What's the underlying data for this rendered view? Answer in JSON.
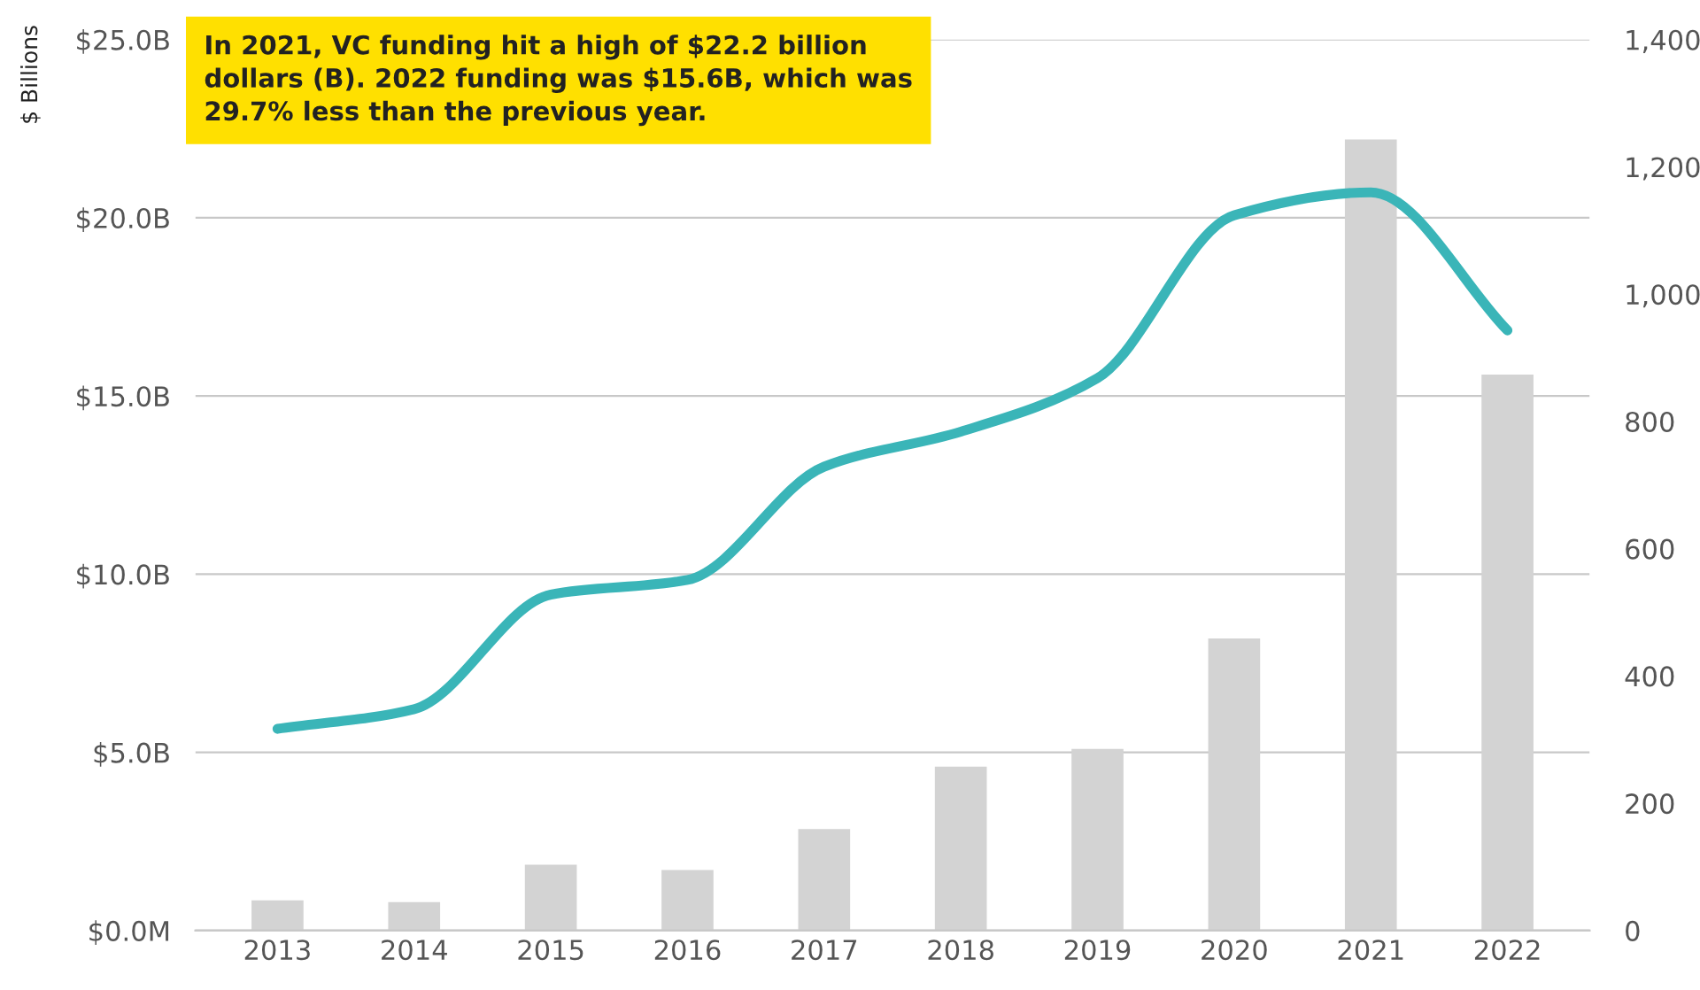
{
  "chart_data": {
    "type": "bar",
    "ylabel": "$ Billions",
    "annotations": [
      "In 2021, VC funding hit a high of $22.2 billion dollars (B). 2022 funding was $15.6B, which was 29.7% less than the previous year."
    ],
    "categories": [
      "2013",
      "2014",
      "2015",
      "2016",
      "2017",
      "2018",
      "2019",
      "2020",
      "2021",
      "2022"
    ],
    "series": [
      {
        "color": "#d3d3d3",
        "values": [
          0.85,
          0.8,
          1.85,
          1.7,
          2.85,
          4.6,
          5.1,
          8.2,
          22.2,
          15.6
        ]
      },
      {
        "type": "line",
        "axis": "y2",
        "color": "#3ab5b8",
        "values": [
          317,
          348,
          528,
          551,
          729,
          784,
          868,
          1124,
          1160,
          943
        ]
      }
    ],
    "ylim": [
      0,
      25
    ],
    "yticks": [
      {
        "value": 0,
        "label": "$0.0M"
      },
      {
        "value": 5,
        "label": "$5.0B"
      },
      {
        "value": 10,
        "label": "$10.0B"
      },
      {
        "value": 15,
        "label": "$15.0B"
      },
      {
        "value": 20,
        "label": "$20.0B"
      },
      {
        "value": 25,
        "label": "$25.0B"
      }
    ],
    "y2lim": [
      0,
      1400
    ],
    "y2ticks": [
      {
        "value": 0,
        "label": "0"
      },
      {
        "value": 200,
        "label": "200"
      },
      {
        "value": 400,
        "label": "400"
      },
      {
        "value": 600,
        "label": "600"
      },
      {
        "value": 800,
        "label": "800"
      },
      {
        "value": 1000,
        "label": "1,000"
      },
      {
        "value": 1200,
        "label": "1,200"
      },
      {
        "value": 1400,
        "label": "1,400"
      }
    ],
    "grid": "y",
    "legend": false,
    "marker": "none",
    "line_style": "solid"
  }
}
